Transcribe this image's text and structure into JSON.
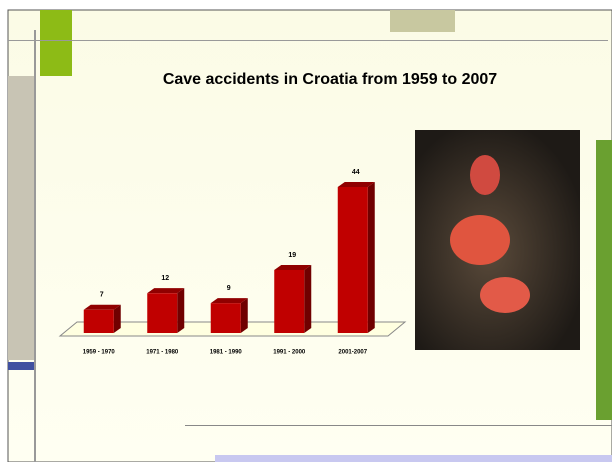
{
  "chart_data": {
    "type": "bar",
    "title": "Cave accidents in Croatia from 1959 to 2007",
    "categories": [
      "1959 - 1970",
      "1971 - 1980",
      "1981 - 1990",
      "1991 - 2000",
      "2001-2007"
    ],
    "values": [
      7,
      12,
      9,
      19,
      44
    ],
    "color": "#c00000"
  }
}
